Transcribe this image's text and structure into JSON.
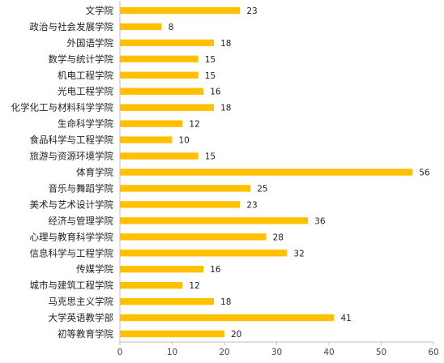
{
  "chart_data": {
    "type": "bar",
    "orientation": "horizontal",
    "categories": [
      "文学院",
      "政治与社会发展学院",
      "外国语学院",
      "数学与统计学院",
      "机电工程学院",
      "光电工程学院",
      "化学化工与材料科学学院",
      "生命科学学院",
      "食品科学与工程学院",
      "旅游与资源环境学院",
      "体育学院",
      "音乐与舞蹈学院",
      "美术与艺术设计学院",
      "经济与管理学院",
      "心理与教育科学学院",
      "信息科学与工程学院",
      "传媒学院",
      "城市与建筑工程学院",
      "马克思主义学院",
      "大学英语教学部",
      "初等教育学院"
    ],
    "values": [
      23,
      8,
      18,
      15,
      15,
      16,
      18,
      12,
      10,
      15,
      56,
      25,
      23,
      36,
      28,
      32,
      16,
      12,
      18,
      41,
      20
    ],
    "xlim": [
      0,
      60
    ],
    "xticks": [
      0,
      10,
      20,
      30,
      40,
      50,
      60
    ],
    "bar_color": "#FFC000",
    "axis_color": "#BFBFBF",
    "grid": false,
    "legend": "none",
    "data_labels": true
  }
}
